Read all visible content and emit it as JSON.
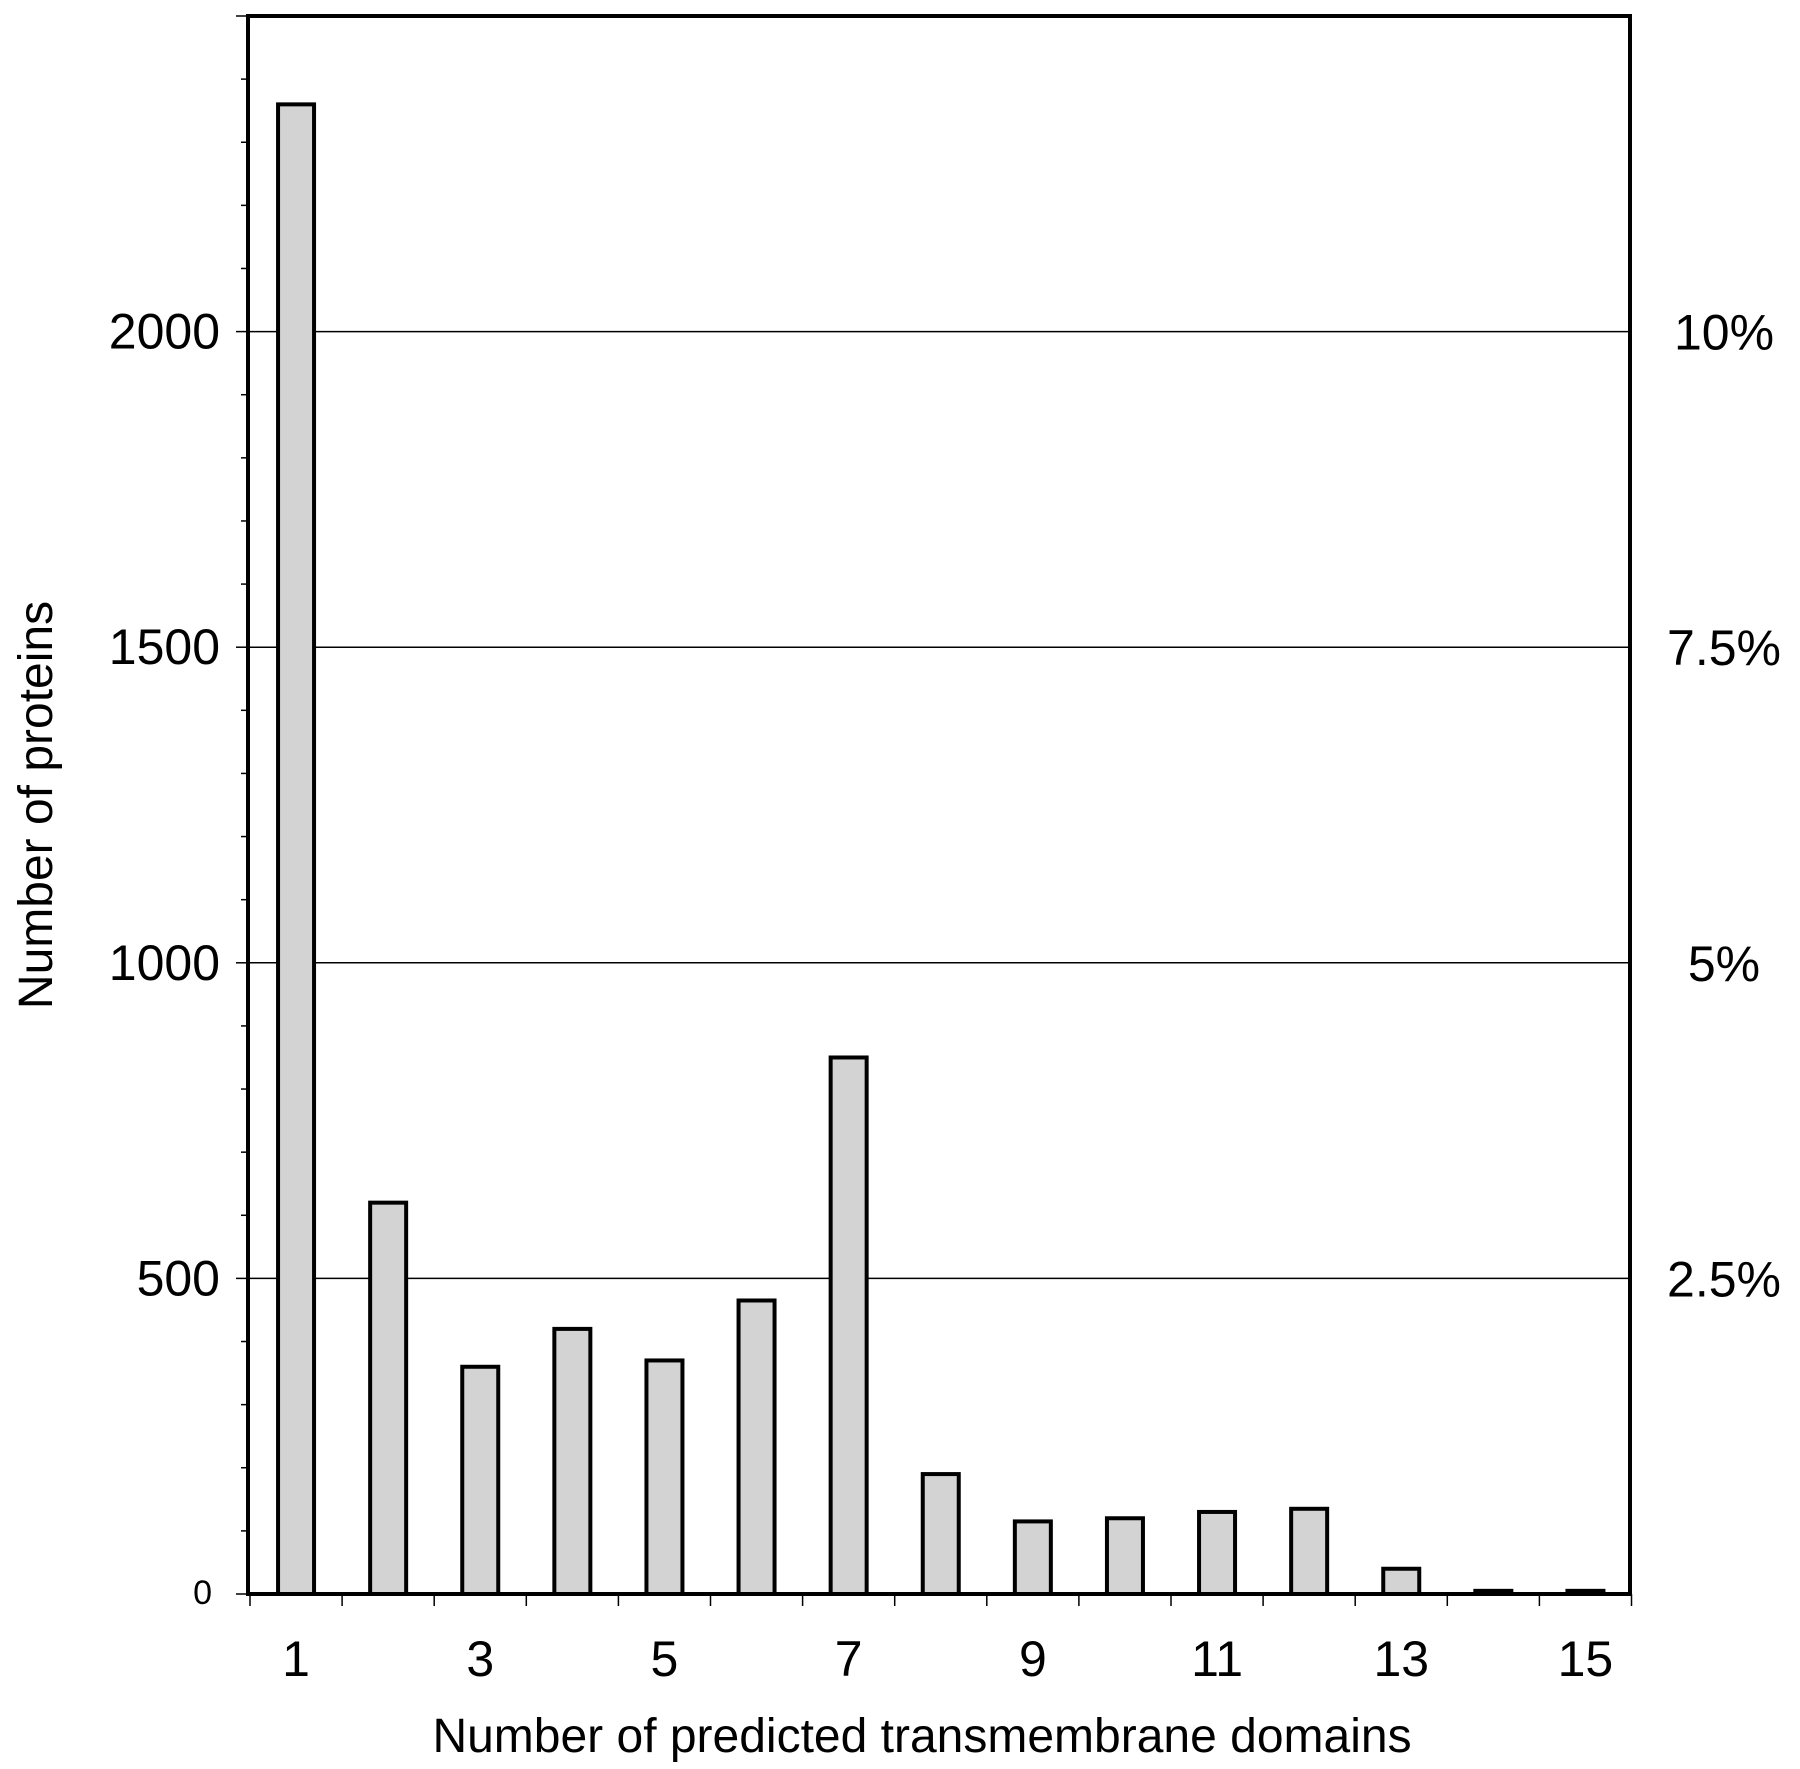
{
  "chart_data": {
    "type": "bar",
    "xlabel": "Number of predicted transmembrane domains",
    "ylabel": "Number of proteins",
    "categories": [
      1,
      2,
      3,
      4,
      5,
      6,
      7,
      8,
      9,
      10,
      11,
      12,
      13,
      14,
      15
    ],
    "x_tick_labels": [
      "1",
      "3",
      "5",
      "7",
      "9",
      "11",
      "13",
      "15"
    ],
    "values": [
      2360,
      620,
      360,
      420,
      370,
      465,
      850,
      190,
      115,
      120,
      130,
      135,
      40,
      5,
      5
    ],
    "ylim": [
      0,
      2500
    ],
    "y_tick_labels": [
      "0",
      "500",
      "1000",
      "1500",
      "2000"
    ],
    "y_gridlines": [
      500,
      1000,
      1500,
      2000
    ],
    "secondary_y_tick_labels": [
      "2.5%",
      "5%",
      "7.5%",
      "10%"
    ],
    "grid": "horizontal",
    "bar_color": "#d3d3d3",
    "bar_edge_color": "#000000",
    "legend": "none"
  }
}
